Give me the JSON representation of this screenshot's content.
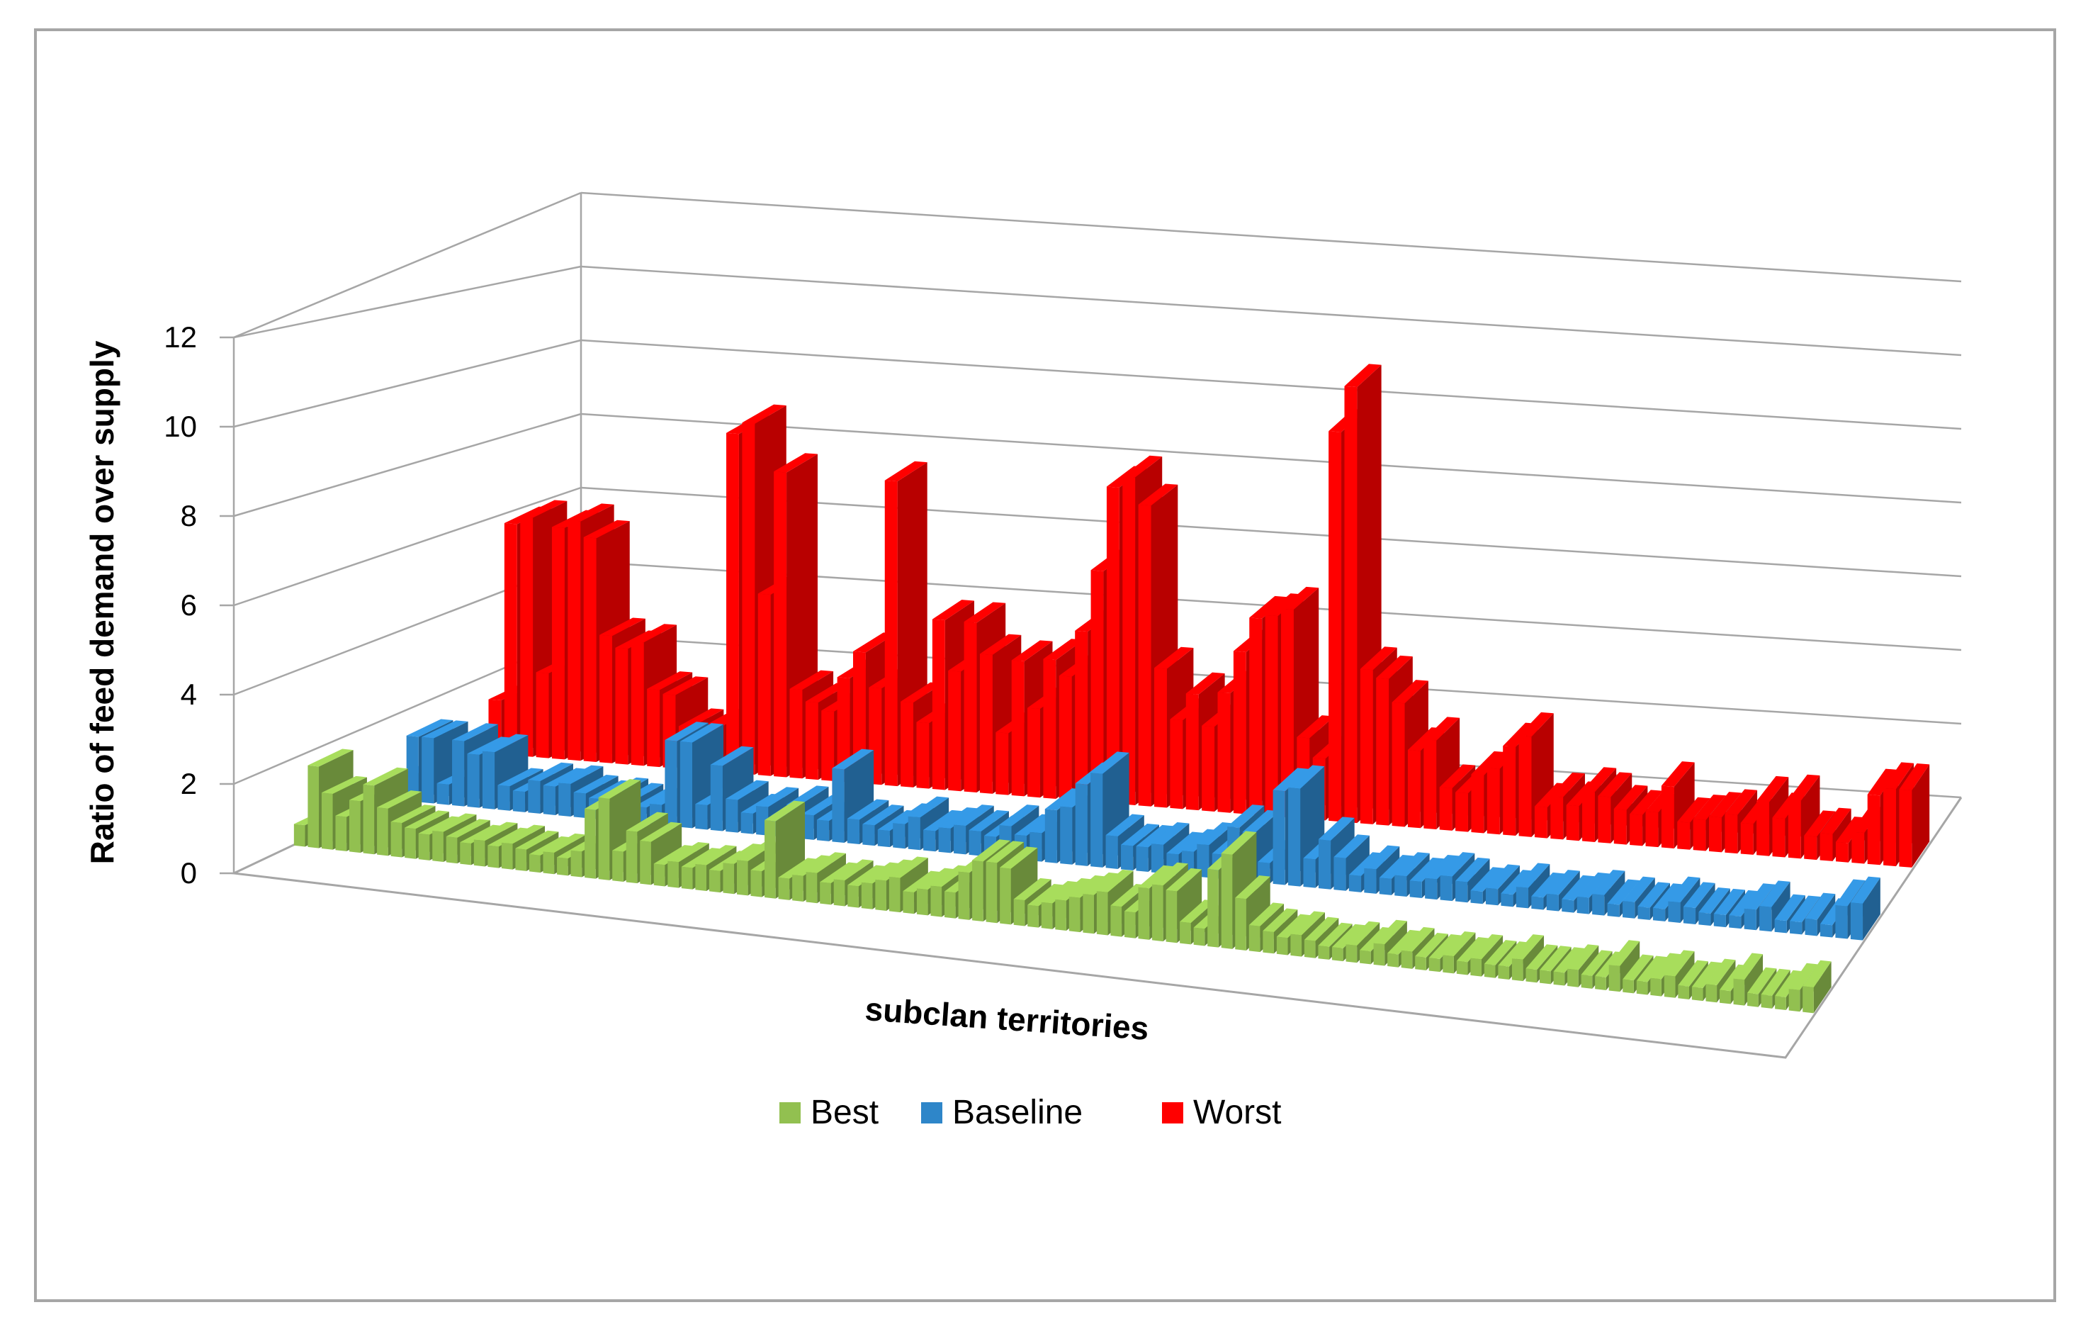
{
  "chart_data": {
    "type": "bar",
    "subtype": "3d-column",
    "ylabel": "Ratio of feed demand over supply",
    "xlabel": "subclan territories",
    "ylim": [
      0,
      12
    ],
    "yticks": [
      "0",
      "2",
      "4",
      "6",
      "8",
      "10",
      "12"
    ],
    "grid": true,
    "legend_position": "bottom",
    "series": [
      {
        "name": "Best",
        "color": "#92c050",
        "values": [
          0.5,
          1.9,
          1.3,
          0.8,
          1.2,
          1.6,
          1.1,
          0.8,
          0.7,
          0.6,
          0.7,
          0.6,
          0.5,
          0.6,
          0.5,
          0.6,
          0.5,
          0.4,
          0.5,
          0.4,
          0.6,
          1.6,
          1.9,
          0.7,
          1.2,
          1.0,
          0.5,
          0.6,
          0.5,
          0.6,
          0.5,
          0.7,
          0.8,
          0.6,
          1.8,
          0.5,
          0.6,
          0.7,
          0.5,
          0.6,
          0.5,
          0.6,
          0.7,
          0.8,
          0.5,
          0.6,
          0.7,
          0.6,
          1.1,
          1.4,
          1.4,
          1.3,
          0.6,
          0.5,
          0.6,
          0.7,
          0.8,
          0.9,
          1.0,
          0.7,
          0.6,
          1.2,
          1.3,
          1.2,
          0.5,
          0.4,
          1.8,
          2.2,
          1.2,
          0.6,
          0.5,
          0.4,
          0.5,
          0.4,
          0.3,
          0.3,
          0.4,
          0.3,
          0.5,
          0.3,
          0.4,
          0.3,
          0.3,
          0.4,
          0.3,
          0.4,
          0.3,
          0.3,
          0.5,
          0.3,
          0.3,
          0.3,
          0.4,
          0.3,
          0.3,
          0.6,
          0.3,
          0.3,
          0.4,
          0.5,
          0.3,
          0.3,
          0.4,
          0.3,
          0.6,
          0.3,
          0.3,
          0.3,
          0.5,
          0.6
        ]
      },
      {
        "name": "Baseline",
        "color": "#2e86c9",
        "values": [
          0.5,
          1.6,
          1.6,
          0.5,
          1.6,
          1.3,
          1.4,
          0.6,
          0.5,
          0.8,
          0.7,
          0.8,
          0.6,
          0.5,
          0.6,
          0.5,
          0.4,
          0.5,
          2.1,
          2.1,
          0.6,
          1.6,
          0.8,
          0.5,
          0.7,
          0.5,
          0.8,
          0.6,
          0.5,
          1.8,
          0.6,
          0.5,
          0.4,
          0.6,
          0.8,
          0.5,
          0.6,
          0.7,
          0.6,
          0.5,
          0.8,
          0.6,
          0.7,
          1.3,
          1.4,
          2.0,
          2.3,
          0.8,
          0.6,
          0.6,
          0.7,
          0.5,
          0.6,
          0.8,
          0.6,
          1.3,
          1.2,
          0.5,
          2.3,
          2.4,
          0.7,
          1.2,
          0.8,
          0.4,
          0.6,
          0.4,
          0.5,
          0.4,
          0.5,
          0.6,
          0.5,
          0.3,
          0.4,
          0.3,
          0.5,
          0.3,
          0.4,
          0.3,
          0.4,
          0.5,
          0.3,
          0.4,
          0.3,
          0.3,
          0.5,
          0.4,
          0.3,
          0.3,
          0.3,
          0.5,
          0.6,
          0.3,
          0.3,
          0.4,
          0.3,
          0.8,
          0.9
        ]
      },
      {
        "name": "Worst",
        "color": "#ff0000",
        "values": [
          1.4,
          6.0,
          6.2,
          2.2,
          6.0,
          6.2,
          5.8,
          3.3,
          3.0,
          3.2,
          2.0,
          1.9,
          1.1,
          1.0,
          1.2,
          8.8,
          9.1,
          4.7,
          7.9,
          2.3,
          2.0,
          1.8,
          2.7,
          3.4,
          2.5,
          7.9,
          2.2,
          1.7,
          4.4,
          3.1,
          4.4,
          3.6,
          1.6,
          3.5,
          2.3,
          3.6,
          3.2,
          4.4,
          6.0,
          8.2,
          8.5,
          7.8,
          3.6,
          2.3,
          3.0,
          2.2,
          3.1,
          4.2,
          5.1,
          5.2,
          5.4,
          2.1,
          1.6,
          10.1,
          11.3,
          4.0,
          3.8,
          3.2,
          2.0,
          2.3,
          1.1,
          1.0,
          1.5,
          1.7,
          2.3,
          2.6,
          0.8,
          1.1,
          0.9,
          1.3,
          1.2,
          0.9,
          0.8,
          0.9,
          1.6,
          0.7,
          0.8,
          0.9,
          1.0,
          0.8,
          1.4,
          1.0,
          1.5,
          0.6,
          0.7,
          0.5,
          0.8,
          1.8,
          2.0,
          2.0
        ]
      }
    ]
  },
  "legend": [
    {
      "label": "Best",
      "color": "#92c050"
    },
    {
      "label": "Baseline",
      "color": "#2e86c9"
    },
    {
      "label": "Worst",
      "color": "#ff0000"
    }
  ],
  "colors": {
    "gridline": "#a6a6a6",
    "frame": "#a6a6a6",
    "text": "#000000"
  }
}
